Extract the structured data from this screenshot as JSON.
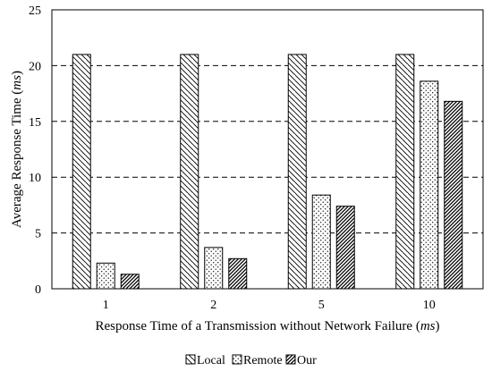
{
  "chart_data": {
    "type": "bar",
    "title": "",
    "xlabel": "Response Time of a Transmission without Network Failure (",
    "xlabel_unit": "ms",
    "xlabel_close": ")",
    "ylabel": "Average Response Time (",
    "ylabel_unit": "ms",
    "ylabel_close": ")",
    "categories": [
      "1",
      "2",
      "5",
      "10"
    ],
    "ylim": [
      0,
      25
    ],
    "yticks": [
      0,
      5,
      10,
      15,
      20,
      25
    ],
    "grid": "horizontal dashed",
    "legend_position": "bottom",
    "series": [
      {
        "name": "Local",
        "values": [
          21,
          21,
          21,
          21
        ],
        "pattern": "diagonal-hatch-back"
      },
      {
        "name": "Remote",
        "values": [
          2.3,
          3.7,
          8.4,
          18.6
        ],
        "pattern": "dots"
      },
      {
        "name": "Our",
        "values": [
          1.3,
          2.7,
          7.4,
          16.8
        ],
        "pattern": "diagonal-hatch-dense"
      }
    ]
  }
}
